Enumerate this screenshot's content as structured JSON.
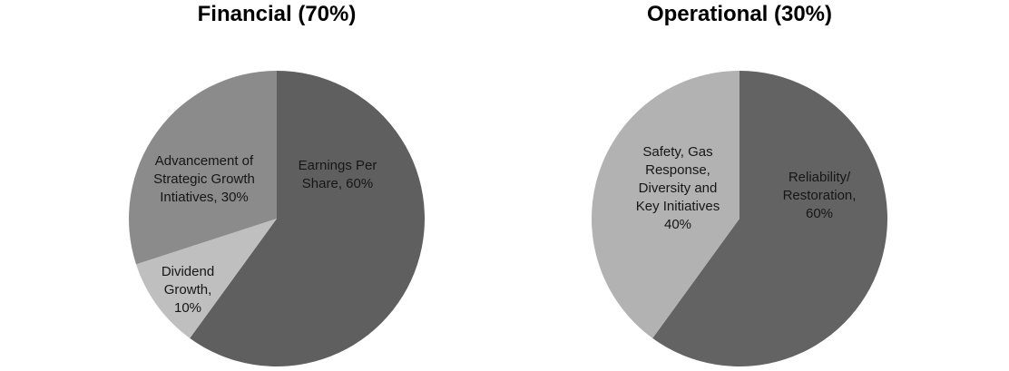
{
  "chart_data": [
    {
      "type": "pie",
      "title": "Financial (70%)",
      "start_angle_deg": 0,
      "direction": "clockwise",
      "legend": "none",
      "label_style": "inside",
      "slices": [
        {
          "id": "earnings-per-share",
          "label": "Earnings Per Share",
          "value": 60,
          "color": "#5F5F5F",
          "label_text": "Earnings Per\nShare, 60%"
        },
        {
          "id": "dividend-growth",
          "label": "Dividend Growth",
          "value": 10,
          "color": "#BFBFBF",
          "label_text": "Dividend\nGrowth,\n10%"
        },
        {
          "id": "advancement-strategic-growth",
          "label": "Advancement of Strategic Growth Intiatives",
          "value": 30,
          "color": "#8B8B8B",
          "label_text": "Advancement of\nStrategic Growth\nIntiatives, 30%"
        }
      ]
    },
    {
      "type": "pie",
      "title": "Operational (30%)",
      "start_angle_deg": 0,
      "direction": "clockwise",
      "legend": "none",
      "label_style": "inside",
      "slices": [
        {
          "id": "reliability-restoration",
          "label": "Reliability/Restoration",
          "value": 60,
          "color": "#636363",
          "label_text": "Reliability/\nRestoration, 60%"
        },
        {
          "id": "safety-gas-response",
          "label": "Safety, Gas Response, Diversity and Key Initiatives",
          "value": 40,
          "color": "#B2B2B2",
          "label_text": "Safety, Gas\nResponse,\nDiversity and\nKey Initiatives\n40%"
        }
      ]
    }
  ]
}
